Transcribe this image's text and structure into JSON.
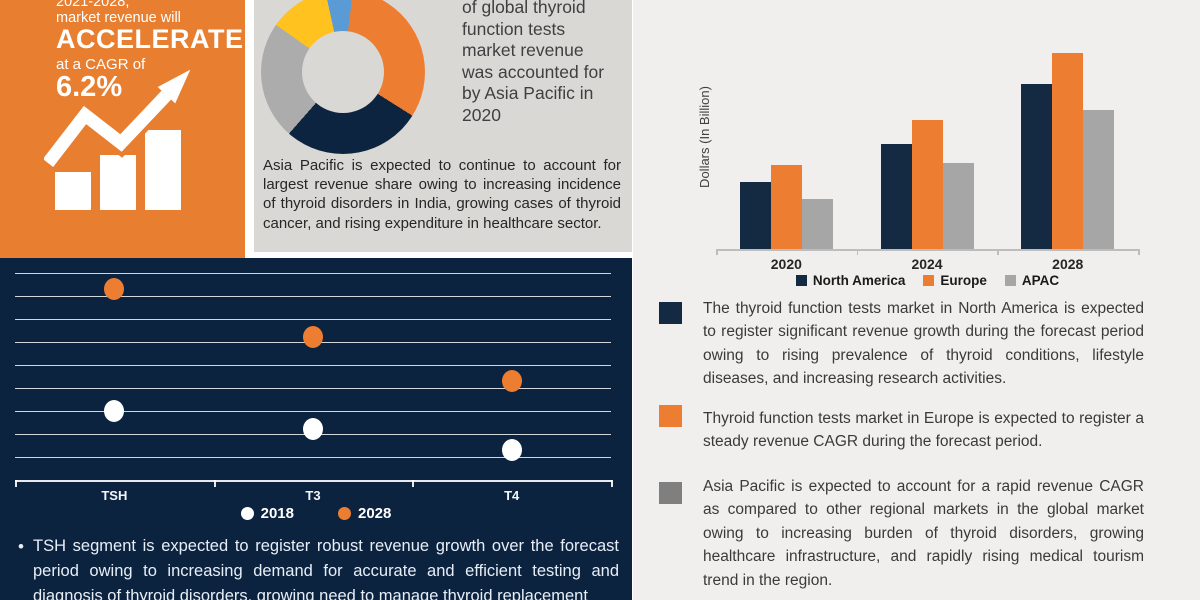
{
  "palette": {
    "orange": "#ED7D31",
    "promo_orange": "#E87E2F",
    "navy_panel": "#0C2340",
    "navy_series": "#142A43",
    "panel_gray": "#D9D8D5",
    "right_bg": "#F0EFED",
    "apac_gray": "#A6A6A6",
    "bullet_gray": "#7F7F7F",
    "yellow": "#FFC21E",
    "blue": "#5B9BD5"
  },
  "promo": {
    "period": "2021-2028,",
    "line2": "market revenue will",
    "accelerate": "ACCELERATE",
    "cagr_label": "at a CAGR of",
    "cagr_value": "6.2%"
  },
  "asia_panel": {
    "headline": "of global thyroid function tests market revenue was accounted for by Asia Pacific in 2020",
    "body": "Asia Pacific is expected to continue to account for largest revenue share owing to increasing incidence of thyroid disorders in India, growing cases of thyroid cancer, and rising expenditure in healthcare sector."
  },
  "tsh_note": {
    "bullet": "•",
    "text": "TSH segment is expected to register robust revenue growth over the forecast period owing to increasing demand for accurate and efficient testing and diagnosis of thyroid disorders, growing need to manage thyroid replacement"
  },
  "region_bullets": [
    {
      "color": "#142A43",
      "text": "The thyroid function tests market in North America is expected to register significant revenue growth during the forecast period owing to rising prevalence of thyroid conditions, lifestyle diseases, and increasing research activities."
    },
    {
      "color": "#ED7D31",
      "text": "Thyroid function tests market in Europe is expected to register a steady revenue CAGR during the forecast period."
    },
    {
      "color": "#7F7F7F",
      "text": "Asia Pacific is expected to account for a rapid revenue CAGR as compared to other regional markets in the global market owing to increasing burden of thyroid disorders, growing healthcare infrastructure, and rapidly rising medical tourism trend in the region."
    }
  ],
  "chart_data": [
    {
      "type": "pie",
      "subtype": "donut",
      "title": "",
      "rotation_deg": 7,
      "slices": [
        {
          "label": "orange segment",
          "color": "#ED7D31",
          "value": 32.0
        },
        {
          "label": "navy segment",
          "color": "#0D2440",
          "value": 27.5
        },
        {
          "label": "gray segment",
          "color": "#ACACAC",
          "value": 23.3
        },
        {
          "label": "yellow segment",
          "color": "#FFC21E",
          "value": 11.8
        },
        {
          "label": "blue segment",
          "color": "#5B9BD5",
          "value": 5.4
        }
      ],
      "note": "slice sizes estimated from arc angles; no labels or values are displayed on the chart"
    },
    {
      "type": "bar",
      "title": "",
      "categories": [
        "2020",
        "2024",
        "2028"
      ],
      "series": [
        {
          "name": "North America",
          "color": "#142A43",
          "values": [
            2.8,
            4.4,
            6.9
          ]
        },
        {
          "name": "Europe",
          "color": "#ED7D31",
          "values": [
            3.5,
            5.4,
            8.2
          ]
        },
        {
          "name": "APAC",
          "color": "#A6A6A6",
          "values": [
            2.1,
            3.6,
            5.8
          ]
        }
      ],
      "xlabel": "",
      "ylabel": "Dollars (In Billion)",
      "ylim": [
        0,
        9.6
      ],
      "gridlines": false,
      "legend_position": "bottom",
      "note": "y-axis has no numeric tick labels; values estimated from relative bar heights"
    },
    {
      "type": "scatter",
      "subtype": "dot-plot",
      "title": "",
      "categories": [
        "TSH",
        "T3",
        "T4"
      ],
      "series": [
        {
          "name": "2018",
          "color": "#FFFFFF",
          "values": [
            3.0,
            2.2,
            1.3
          ]
        },
        {
          "name": "2028",
          "color": "#ED7D31",
          "values": [
            8.3,
            6.2,
            4.3
          ]
        }
      ],
      "ylim": [
        0,
        9.2
      ],
      "gridline_count": 9,
      "gridlines": true,
      "legend_position": "bottom",
      "note": "axis is unlabeled; values estimated against 9 unlabeled gridlines"
    }
  ]
}
